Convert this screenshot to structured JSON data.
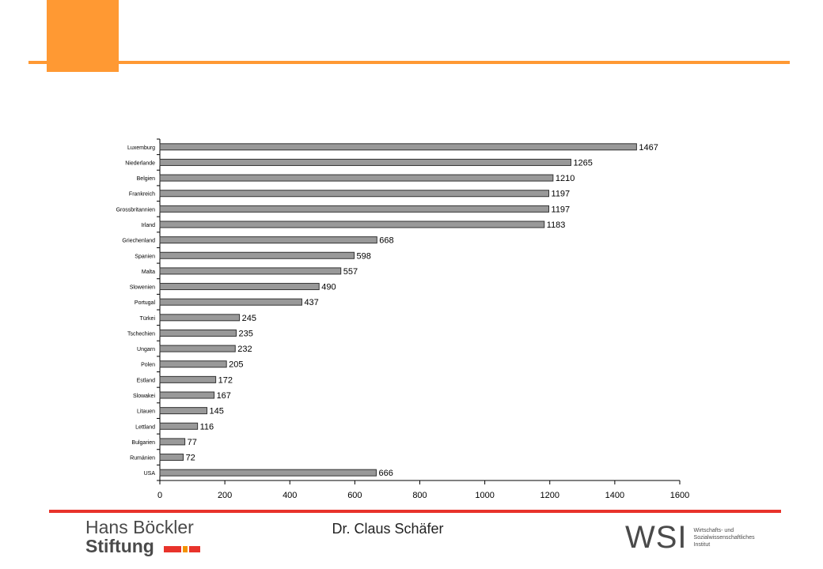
{
  "colors": {
    "orange": "#FF9933",
    "red_line": "#E8332B",
    "bar_fill": "#999999",
    "bar_stroke": "#333333",
    "logo_gray": "#4a4a4a",
    "logo_red": "#E8332B",
    "logo_orange": "#F39200"
  },
  "chart_data": {
    "type": "bar",
    "orientation": "horizontal",
    "categories": [
      "Luxemburg",
      "Niederlande",
      "Belgien",
      "Frankreich",
      "Grossbritannien",
      "Irland",
      "Griechenland",
      "Spanien",
      "Malta",
      "Slowenien",
      "Portugal",
      "Türkei",
      "Tschechien",
      "Ungarn",
      "Polen",
      "Estland",
      "Slowakei",
      "Litauen",
      "Lettland",
      "Bulgarien",
      "Rumänien",
      "USA"
    ],
    "values": [
      1467,
      1265,
      1210,
      1197,
      1197,
      1183,
      668,
      598,
      557,
      490,
      437,
      245,
      235,
      232,
      205,
      172,
      167,
      145,
      116,
      77,
      72,
      666
    ],
    "xlim": [
      0,
      1600
    ],
    "xticks": [
      0,
      200,
      400,
      600,
      800,
      1000,
      1200,
      1400,
      1600
    ],
    "grid": false,
    "legend": "none",
    "data_labels": true
  },
  "footer": {
    "presenter": "Dr. Claus Schäfer"
  },
  "logos": {
    "hans_boeckler": {
      "line1": "Hans Böckler",
      "line2": "Stiftung"
    },
    "wsi": {
      "letters": "WSI",
      "sub1": "Wirtschafts- und",
      "sub2": "Sozialwissenschaftliches",
      "sub3": "Institut"
    }
  }
}
